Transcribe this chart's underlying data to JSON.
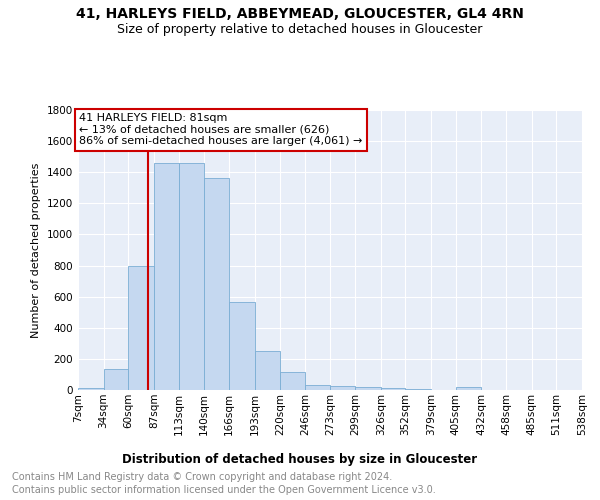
{
  "title1": "41, HARLEYS FIELD, ABBEYMEAD, GLOUCESTER, GL4 4RN",
  "title2": "Size of property relative to detached houses in Gloucester",
  "xlabel": "Distribution of detached houses by size in Gloucester",
  "ylabel": "Number of detached properties",
  "bin_edges": [
    7,
    34,
    60,
    87,
    113,
    140,
    166,
    193,
    220,
    246,
    273,
    299,
    326,
    352,
    379,
    405,
    432,
    458,
    485,
    511,
    538
  ],
  "bin_labels": [
    "7sqm",
    "34sqm",
    "60sqm",
    "87sqm",
    "113sqm",
    "140sqm",
    "166sqm",
    "193sqm",
    "220sqm",
    "246sqm",
    "273sqm",
    "299sqm",
    "326sqm",
    "352sqm",
    "379sqm",
    "405sqm",
    "432sqm",
    "458sqm",
    "485sqm",
    "511sqm",
    "538sqm"
  ],
  "counts": [
    10,
    135,
    795,
    1460,
    1460,
    1360,
    565,
    248,
    118,
    35,
    28,
    20,
    15,
    5,
    3,
    20,
    3,
    2,
    1,
    2,
    0
  ],
  "bar_color": "#c5d8f0",
  "bar_edge_color": "#7aadd4",
  "vline_x": 81,
  "vline_color": "#cc0000",
  "annotation_text": "41 HARLEYS FIELD: 81sqm\n← 13% of detached houses are smaller (626)\n86% of semi-detached houses are larger (4,061) →",
  "annotation_box_color": "#ffffff",
  "annotation_box_edge_color": "#cc0000",
  "ylim": [
    0,
    1800
  ],
  "yticks": [
    0,
    200,
    400,
    600,
    800,
    1000,
    1200,
    1400,
    1600,
    1800
  ],
  "footer1": "Contains HM Land Registry data © Crown copyright and database right 2024.",
  "footer2": "Contains public sector information licensed under the Open Government Licence v3.0.",
  "bg_color": "#e8eef8",
  "grid_color": "#ffffff",
  "title1_fontsize": 10,
  "title2_fontsize": 9,
  "xlabel_fontsize": 8.5,
  "ylabel_fontsize": 8,
  "tick_fontsize": 7.5,
  "footer_fontsize": 7,
  "annot_fontsize": 8
}
